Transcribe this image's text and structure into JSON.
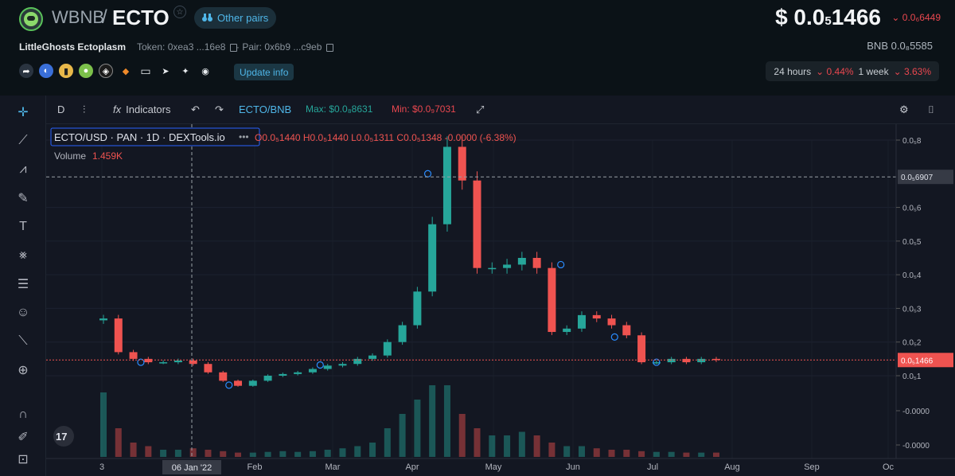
{
  "header": {
    "base_symbol": "WBNB",
    "separator": "/",
    "quote_symbol": "ECTO",
    "star_glyph": "☆",
    "other_pairs_label": "Other pairs",
    "price_prefix": "$ 0.0",
    "price_subscript": "5",
    "price_tail": "1466",
    "price_change": "⌄ 0.0₆6449",
    "token_name": "LittleGhosts Ectoplasm",
    "token_label": "Token: 0xea3 ...16e8",
    "pair_label": "· Pair: 0x6b9 ...c9eb",
    "bnb_price": "BNB  0.0₈5585",
    "update_info_label": "Update info",
    "change_24h_label": "24 hours",
    "change_24h_value": "⌄ 0.44%",
    "change_1w_label": "1 week",
    "change_1w_value": "⌄ 3.63%",
    "social_icons": [
      "share-icon",
      "coinmarketcap-icon",
      "chart-icon",
      "coingecko-icon",
      "dapp-icon",
      "metamask-icon",
      "website-icon",
      "telegram-icon",
      "twitter-icon",
      "discord-icon"
    ],
    "accent_color": "#4fb6e8",
    "negative_color": "#e9474f"
  },
  "toolbar": {
    "interval": "D",
    "indicators_label": "Indicators",
    "symbol_pair": "ECTO/BNB",
    "max_label": "Max: $0.0₈8631",
    "min_label": "Min: $0.0₉7031"
  },
  "left_tools": [
    "crosshair-icon",
    "trendline-icon",
    "fib-icon",
    "brush-icon",
    "text-icon",
    "pattern-icon",
    "prediction-icon",
    "emoji-icon",
    "ruler-icon",
    "zoom-in-icon",
    "magnet-icon",
    "lock-draw-icon",
    "lock-icon"
  ],
  "legend": {
    "symbol": "ECTO/USD · PAN · 1D · DEXTools.io",
    "ohlc": "O0.0₅1440  H0.0₅1440  L0.0₅1311  C0.0₅1348  -0.0000  (-6.38%)",
    "volume_label": "Volume",
    "volume_value": "1.459K"
  },
  "chart_data": {
    "type": "candlestick",
    "price_axis": {
      "ticks": [
        "0.0₅8",
        "0.0₅6",
        "0.0₅5",
        "0.0₅4",
        "0.0₅3",
        "0.0₅2",
        "0.0₅1",
        "-0.0000",
        "-0.0000"
      ],
      "tick_values_e6": [
        8,
        6,
        5,
        4,
        3,
        2,
        1
      ],
      "crosshair_label": "0.0₅6907",
      "crosshair_value_e6": 6.907,
      "last_price_label": "0.0₅1466",
      "last_price_value_e6": 1.466,
      "ylim_e6": [
        0.5,
        8.3
      ]
    },
    "time_axis": {
      "ticks": [
        "3",
        "Feb",
        "Mar",
        "Apr",
        "May",
        "Jun",
        "Jul",
        "Aug",
        "Sep",
        "Oc"
      ],
      "crosshair_label": "06 Jan '22"
    },
    "series": [
      {
        "name": "price",
        "close_e6": [
          2.7,
          1.7,
          1.5,
          1.4,
          1.4,
          1.45,
          1.35,
          1.1,
          0.85,
          0.7,
          0.85,
          1.0,
          1.05,
          1.1,
          1.2,
          1.3,
          1.35,
          1.5,
          1.6,
          2.0,
          2.5,
          3.5,
          5.5,
          7.8,
          6.8,
          4.2,
          4.2,
          4.3,
          4.5,
          4.2,
          2.3,
          2.4,
          2.8,
          2.7,
          2.5,
          2.2,
          1.4,
          1.4,
          1.5,
          1.4,
          1.5,
          1.466
        ]
      },
      {
        "name": "volume",
        "relative": [
          0.9,
          0.4,
          0.2,
          0.15,
          0.1,
          0.1,
          0.12,
          0.1,
          0.08,
          0.06,
          0.06,
          0.07,
          0.08,
          0.07,
          0.08,
          0.1,
          0.12,
          0.15,
          0.2,
          0.4,
          0.6,
          0.8,
          1.0,
          1.0,
          0.6,
          0.4,
          0.3,
          0.3,
          0.35,
          0.3,
          0.2,
          0.15,
          0.15,
          0.12,
          0.1,
          0.1,
          0.08,
          0.07,
          0.07,
          0.06,
          0.06,
          0.06
        ]
      }
    ],
    "up_color": "#26a69a",
    "down_color": "#ef5350"
  }
}
